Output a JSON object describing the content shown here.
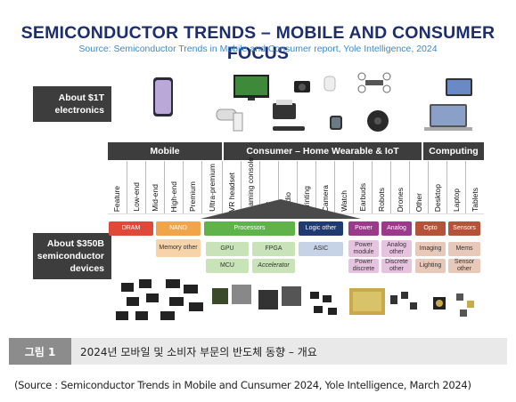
{
  "header": {
    "title": "SEMICONDUCTOR TRENDS – MOBILE AND CONSUMER FOCUS",
    "subtitle": "Source: Semiconductor Trends in Mobile and Consumer report, Yole Intelligence, 2024"
  },
  "electronics_label": "About $1T electronics",
  "devices_label": "About $350B semiconductor devices",
  "segments": {
    "mobile": "Mobile",
    "consumer": "Consumer – Home Wearable & IoT",
    "computing": "Computing"
  },
  "subsegments": [
    "Feature",
    "Low-end",
    "Mid-end",
    "High-end",
    "Premium",
    "Ultra-premium",
    "VR headset",
    "Gaming console",
    "TV",
    "Audio",
    "Printing",
    "Camera",
    "Watch",
    "Earbuds",
    "Robots",
    "Drones",
    "Other",
    "Desktop",
    "Laptop",
    "Tablets"
  ],
  "chips": {
    "dram": "DRAM",
    "nand": "NAND",
    "memory_other": "Memory other",
    "processors": "Processors",
    "gpu": "GPU",
    "fpga": "FPGA",
    "mcu": "MCU",
    "accelerator": "Accelerator",
    "logic_other": "Logic other",
    "asic": "ASIC",
    "power": "Power",
    "analog": "Analog",
    "power_module": "Power module",
    "analog_other": "Analog other",
    "power_discrete": "Power discrete",
    "discrete_other": "Discrete other",
    "opto": "Opto",
    "sensors": "Sensors",
    "imaging": "Imaging",
    "mems": "Mems",
    "lighting": "Lighting",
    "sensor_other": "Sensor other"
  },
  "colors": {
    "dark": "#3d3d3d",
    "title": "#1c2e6e",
    "subtitle": "#3f89c9",
    "red": "#e0483a",
    "orange": "#f0a54a",
    "green": "#5fb34a",
    "navy": "#1f3a6e",
    "purple": "#9b3a8a",
    "brown": "#b5523a",
    "pink": "#f0c6c4",
    "peach": "#f6d3a8",
    "lightgreen": "#c8e3b8",
    "lightblue": "#c6d3e6",
    "lightpurple": "#e6c3df",
    "lightbrown": "#e8c8b8"
  },
  "caption": {
    "label": "그림 1",
    "text": "2024년 모바일 및 소비자 부문의 반도체 동향 – 개요"
  },
  "source": "(Source : Semiconductor Trends in Mobile and Cunsumer 2024, Yole Intelligence, March 2024)"
}
